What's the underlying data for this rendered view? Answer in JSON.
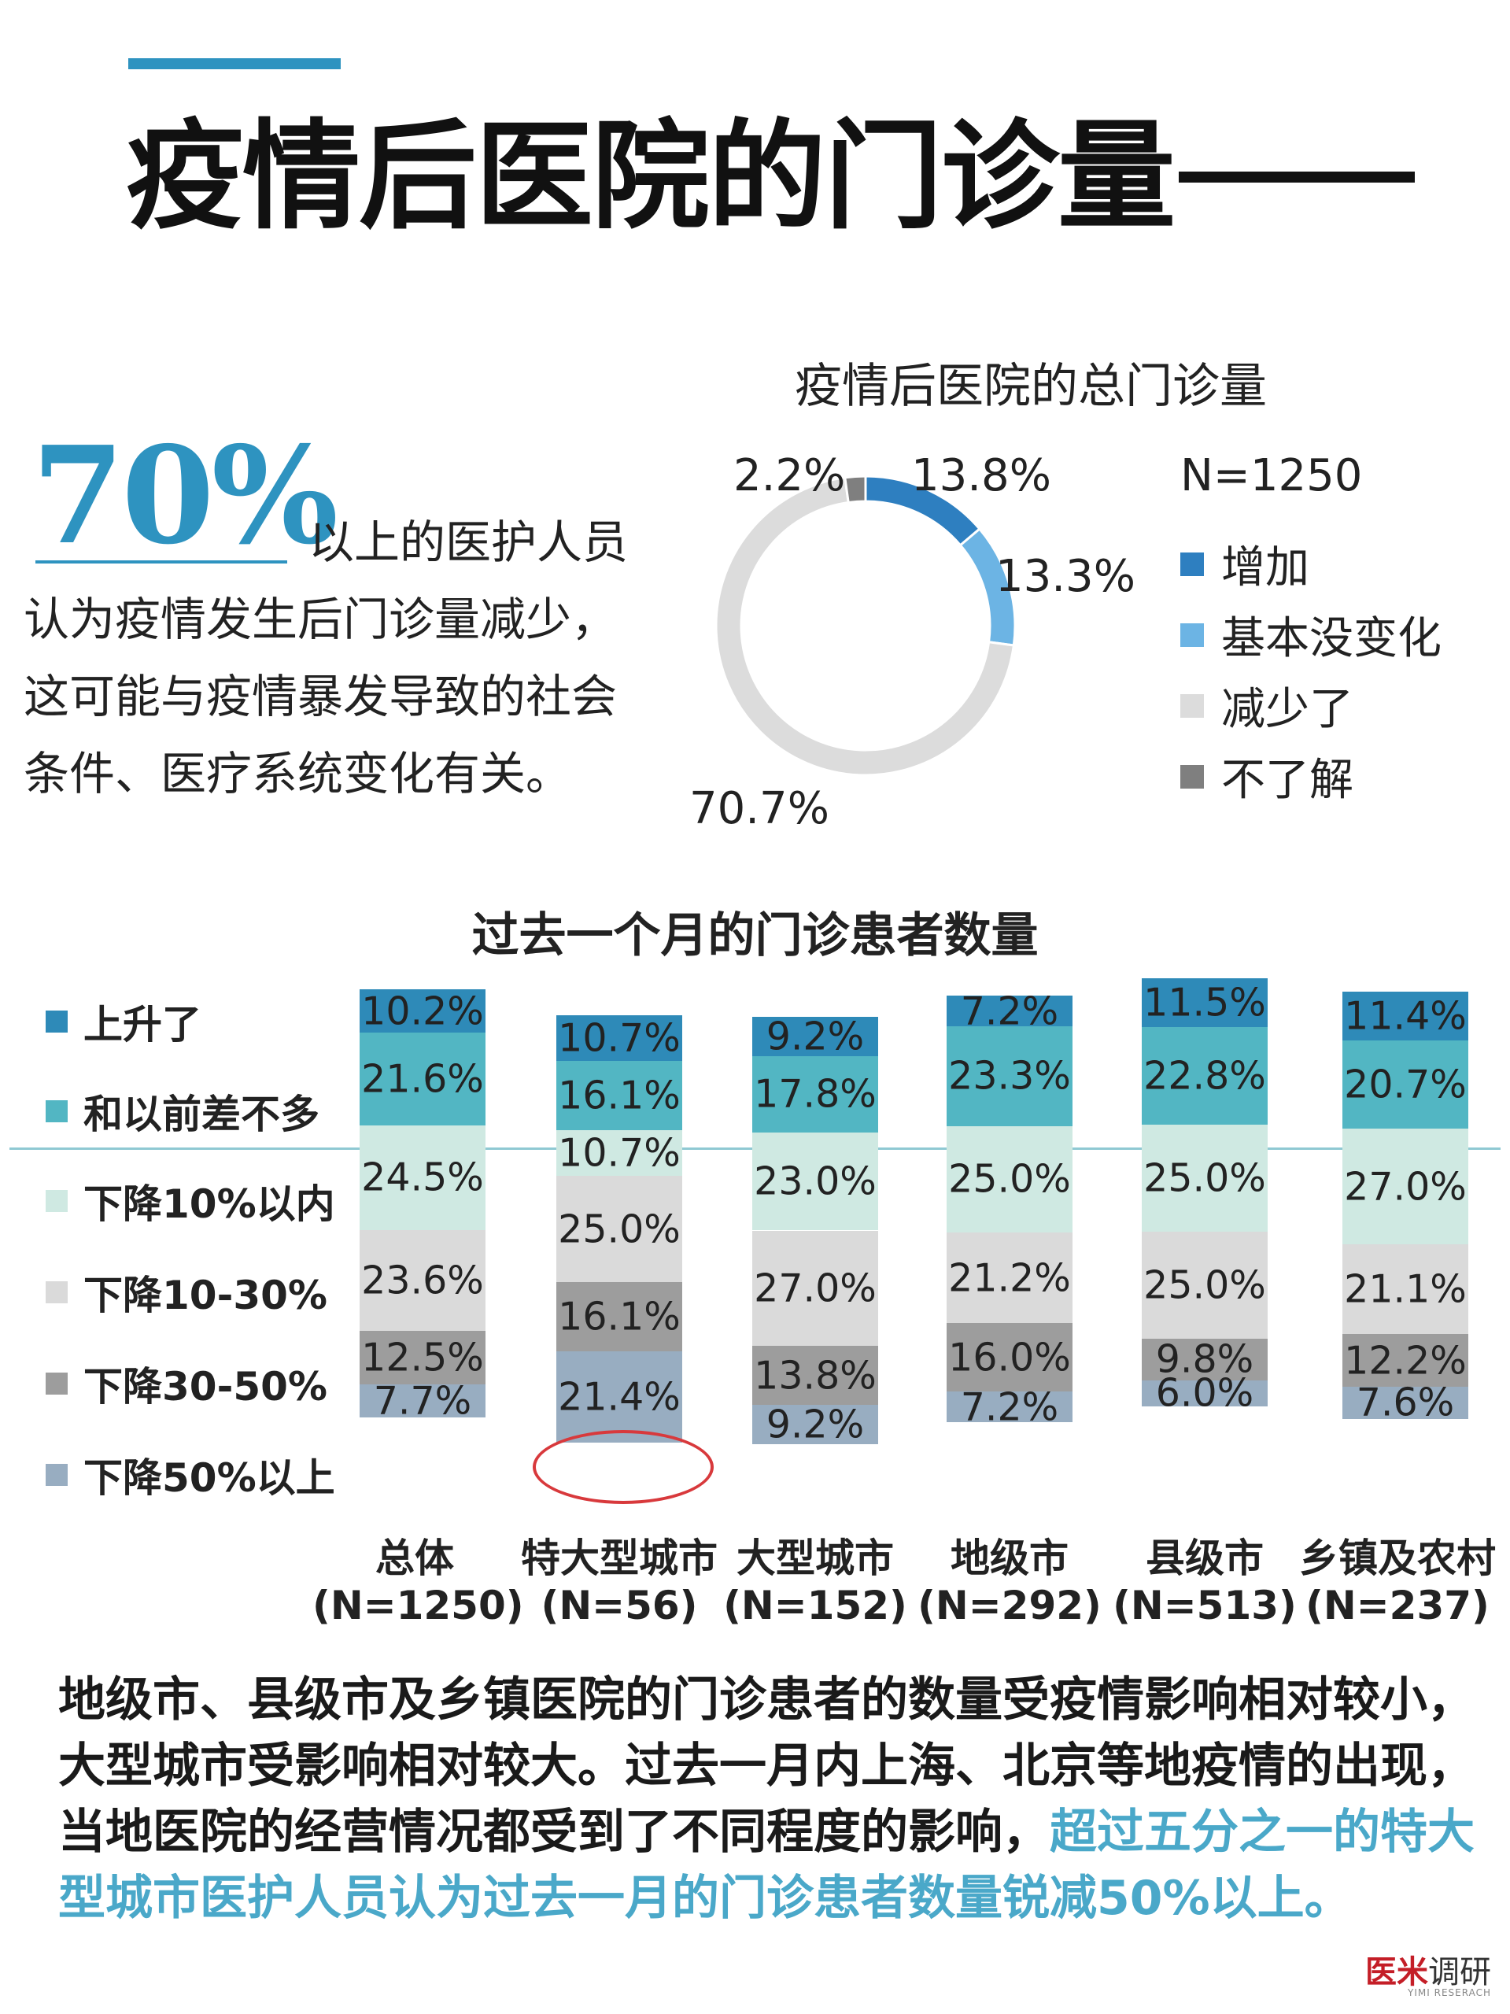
{
  "header": {
    "title": "疫情后医院的门诊量"
  },
  "highlight": {
    "percent": "70%",
    "lines": [
      "以上的医护人员",
      "认为疫情发生后门诊量减少，",
      "这可能与疫情暴发导致的社会",
      "条件、医疗系统变化有关。"
    ]
  },
  "chart_data": [
    {
      "type": "pie",
      "title": "疫情后医院的总门诊量",
      "note": "N=1250",
      "labels": [
        "增加",
        "基本没变化",
        "减少了",
        "不了解"
      ],
      "values": [
        13.8,
        13.3,
        70.7,
        2.2
      ],
      "value_labels": [
        "13.8%",
        "13.3%",
        "70.7%",
        "2.2%"
      ],
      "colors": [
        "#2e7fc0",
        "#6cb4e4",
        "#dcdcdc",
        "#7f7f7f"
      ],
      "legend": "right"
    },
    {
      "type": "bar",
      "stacked": true,
      "title": "过去一个月的门诊患者数量",
      "categories": [
        "总体",
        "特大型城市",
        "大型城市",
        "地级市",
        "县级市",
        "乡镇及农村"
      ],
      "category_n": [
        "(N=1250)",
        "(N=56)",
        "(N=152)",
        "(N=292)",
        "(N=513)",
        "(N=237)"
      ],
      "legend": "left",
      "series": [
        {
          "name": "上升了",
          "color": "#2e8ab8",
          "values": [
            10.2,
            10.7,
            9.2,
            7.2,
            11.5,
            11.4
          ]
        },
        {
          "name": "和以前差不多",
          "color": "#52b6c3",
          "values": [
            21.6,
            16.1,
            17.8,
            23.3,
            22.8,
            20.7
          ]
        },
        {
          "name": "下降10%以内",
          "color": "#cfe9e2",
          "values": [
            24.5,
            10.7,
            23.0,
            25.0,
            25.0,
            27.0
          ]
        },
        {
          "name": "下降10-30%",
          "color": "#dadada",
          "values": [
            23.6,
            25.0,
            27.0,
            21.2,
            25.0,
            21.1
          ]
        },
        {
          "name": "下降30-50%",
          "color": "#9d9d9d",
          "values": [
            12.5,
            16.1,
            13.8,
            16.0,
            9.8,
            12.2
          ]
        },
        {
          "name": "下降50%以上",
          "color": "#98adc1",
          "values": [
            7.7,
            21.4,
            9.2,
            7.2,
            6.0,
            7.6
          ]
        }
      ],
      "value_labels": [
        [
          "10.2%",
          "21.6%",
          "24.5%",
          "23.6%",
          "12.5%",
          "7.7%"
        ],
        [
          "10.7%",
          "16.1%",
          "10.7%",
          "25.0%",
          "16.1%",
          "21.4%"
        ],
        [
          "9.2%",
          "17.8%",
          "23.0%",
          "27.0%",
          "13.8%",
          "9.2%"
        ],
        [
          "7.2%",
          "23.3%",
          "25.0%",
          "21.2%",
          "16.0%",
          "7.2%"
        ],
        [
          "11.5%",
          "22.8%",
          "25.0%",
          "25.0%",
          "9.8%",
          "6.0%"
        ],
        [
          "11.4%",
          "20.7%",
          "27.0%",
          "21.1%",
          "12.2%",
          "7.6%"
        ]
      ],
      "highlighted": {
        "category": "特大型城市",
        "series": "下降50%以上",
        "ring_color": "#d8393c"
      }
    }
  ],
  "conclusion": {
    "text_plain": "地级市、县级市及乡镇医院的门诊患者的数量受疫情影响相对较小，大型城市受影响相对较大。过去一月内上海、北京等地疫情的出现，当地医院的经营情况都受到了不同程度的影响，",
    "text_highlight": "超过五分之一的特大型城市医护人员认为过去一月的门诊患者数量锐减50%以上。"
  },
  "brand": {
    "name_a": "医米",
    "name_b": "调研",
    "subtitle": "YIMI RESERACH"
  }
}
